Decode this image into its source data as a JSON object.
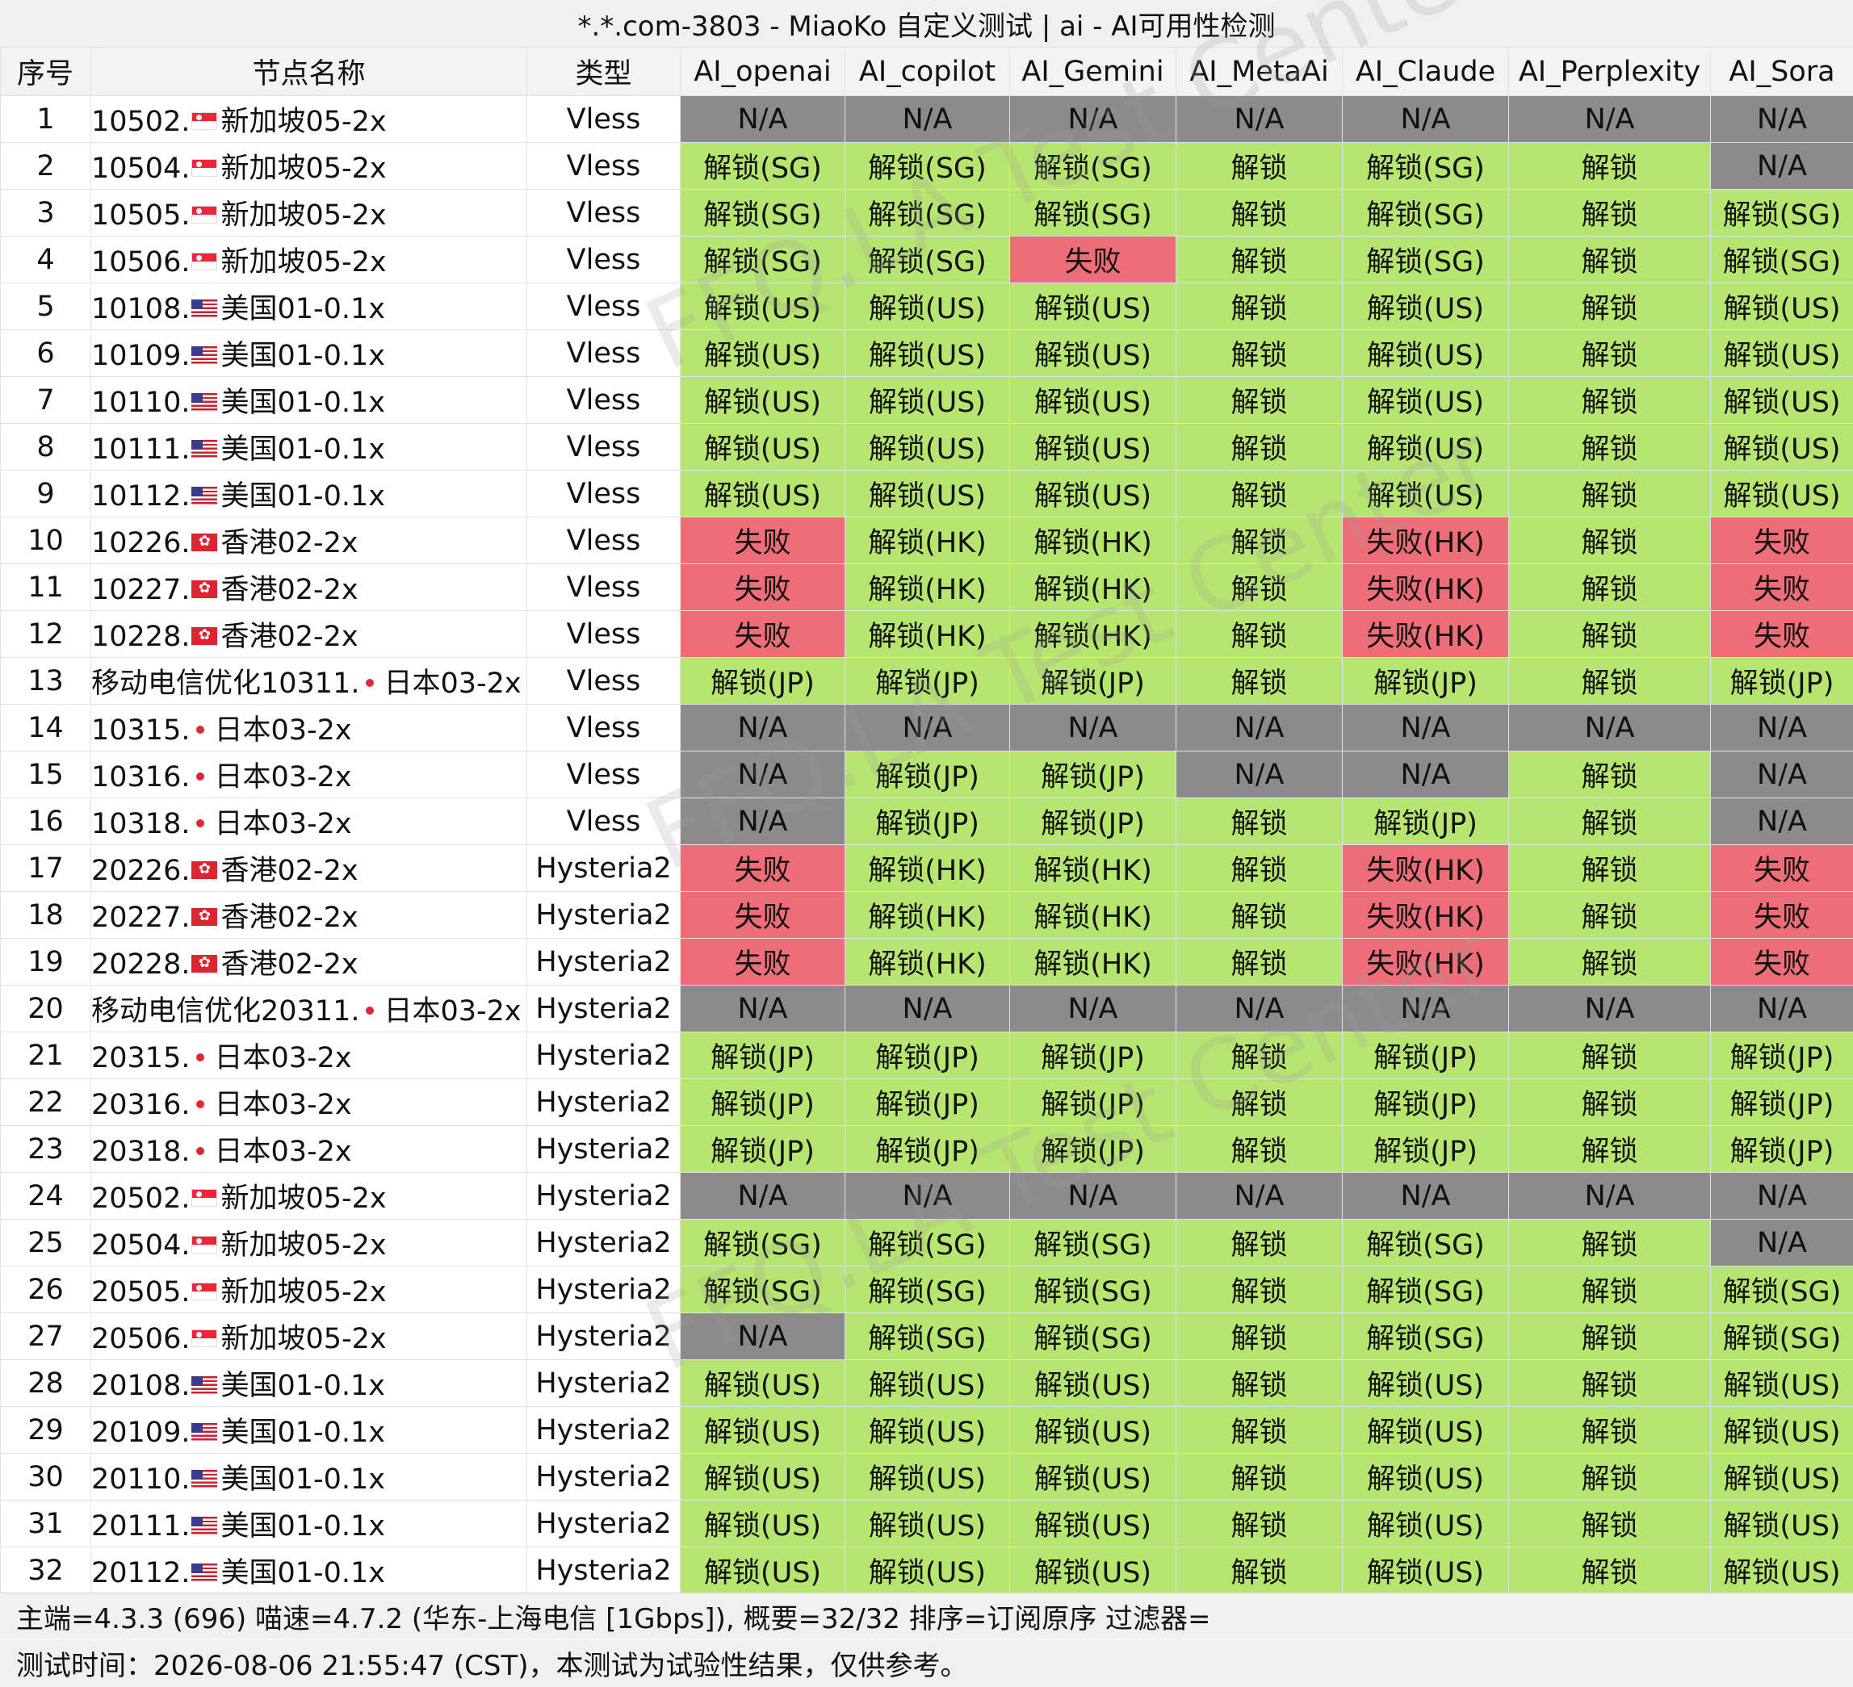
{
  "title": "*.*.com-3803 - MiaoKo 自定义测试 | ai - AI可用性检测",
  "columns": [
    "序号",
    "节点名称",
    "类型",
    "AI_openai",
    "AI_copilot",
    "AI_Gemini",
    "AI_MetaAi",
    "AI_Claude",
    "AI_Perplexity",
    "AI_Sora"
  ],
  "rows": [
    {
      "seq": "1",
      "prefix": "10502.",
      "flag": "sg",
      "region": "新加坡05-2x",
      "type": "Vless",
      "results": [
        "N/A",
        "N/A",
        "N/A",
        "N/A",
        "N/A",
        "N/A",
        "N/A"
      ]
    },
    {
      "seq": "2",
      "prefix": "10504.",
      "flag": "sg",
      "region": "新加坡05-2x",
      "type": "Vless",
      "results": [
        "解锁(SG)",
        "解锁(SG)",
        "解锁(SG)",
        "解锁",
        "解锁(SG)",
        "解锁",
        "N/A"
      ]
    },
    {
      "seq": "3",
      "prefix": "10505.",
      "flag": "sg",
      "region": "新加坡05-2x",
      "type": "Vless",
      "results": [
        "解锁(SG)",
        "解锁(SG)",
        "解锁(SG)",
        "解锁",
        "解锁(SG)",
        "解锁",
        "解锁(SG)"
      ]
    },
    {
      "seq": "4",
      "prefix": "10506.",
      "flag": "sg",
      "region": "新加坡05-2x",
      "type": "Vless",
      "results": [
        "解锁(SG)",
        "解锁(SG)",
        "失败",
        "解锁",
        "解锁(SG)",
        "解锁",
        "解锁(SG)"
      ]
    },
    {
      "seq": "5",
      "prefix": "10108.",
      "flag": "us",
      "region": "美国01-0.1x",
      "type": "Vless",
      "results": [
        "解锁(US)",
        "解锁(US)",
        "解锁(US)",
        "解锁",
        "解锁(US)",
        "解锁",
        "解锁(US)"
      ]
    },
    {
      "seq": "6",
      "prefix": "10109.",
      "flag": "us",
      "region": "美国01-0.1x",
      "type": "Vless",
      "results": [
        "解锁(US)",
        "解锁(US)",
        "解锁(US)",
        "解锁",
        "解锁(US)",
        "解锁",
        "解锁(US)"
      ]
    },
    {
      "seq": "7",
      "prefix": "10110.",
      "flag": "us",
      "region": "美国01-0.1x",
      "type": "Vless",
      "results": [
        "解锁(US)",
        "解锁(US)",
        "解锁(US)",
        "解锁",
        "解锁(US)",
        "解锁",
        "解锁(US)"
      ]
    },
    {
      "seq": "8",
      "prefix": "10111.",
      "flag": "us",
      "region": "美国01-0.1x",
      "type": "Vless",
      "results": [
        "解锁(US)",
        "解锁(US)",
        "解锁(US)",
        "解锁",
        "解锁(US)",
        "解锁",
        "解锁(US)"
      ]
    },
    {
      "seq": "9",
      "prefix": "10112.",
      "flag": "us",
      "region": "美国01-0.1x",
      "type": "Vless",
      "results": [
        "解锁(US)",
        "解锁(US)",
        "解锁(US)",
        "解锁",
        "解锁(US)",
        "解锁",
        "解锁(US)"
      ]
    },
    {
      "seq": "10",
      "prefix": "10226.",
      "flag": "hk",
      "region": "香港02-2x",
      "type": "Vless",
      "results": [
        "失败",
        "解锁(HK)",
        "解锁(HK)",
        "解锁",
        "失败(HK)",
        "解锁",
        "失败"
      ]
    },
    {
      "seq": "11",
      "prefix": "10227.",
      "flag": "hk",
      "region": "香港02-2x",
      "type": "Vless",
      "results": [
        "失败",
        "解锁(HK)",
        "解锁(HK)",
        "解锁",
        "失败(HK)",
        "解锁",
        "失败"
      ]
    },
    {
      "seq": "12",
      "prefix": "10228.",
      "flag": "hk",
      "region": "香港02-2x",
      "type": "Vless",
      "results": [
        "失败",
        "解锁(HK)",
        "解锁(HK)",
        "解锁",
        "失败(HK)",
        "解锁",
        "失败"
      ]
    },
    {
      "seq": "13",
      "prefix": "移动电信优化10311.",
      "flag": "jp",
      "region": "日本03-2x",
      "type": "Vless",
      "results": [
        "解锁(JP)",
        "解锁(JP)",
        "解锁(JP)",
        "解锁",
        "解锁(JP)",
        "解锁",
        "解锁(JP)"
      ]
    },
    {
      "seq": "14",
      "prefix": "10315.",
      "flag": "jp",
      "region": "日本03-2x",
      "type": "Vless",
      "results": [
        "N/A",
        "N/A",
        "N/A",
        "N/A",
        "N/A",
        "N/A",
        "N/A"
      ]
    },
    {
      "seq": "15",
      "prefix": "10316.",
      "flag": "jp",
      "region": "日本03-2x",
      "type": "Vless",
      "results": [
        "N/A",
        "解锁(JP)",
        "解锁(JP)",
        "N/A",
        "N/A",
        "解锁",
        "N/A"
      ]
    },
    {
      "seq": "16",
      "prefix": "10318.",
      "flag": "jp",
      "region": "日本03-2x",
      "type": "Vless",
      "results": [
        "N/A",
        "解锁(JP)",
        "解锁(JP)",
        "解锁",
        "解锁(JP)",
        "解锁",
        "N/A"
      ]
    },
    {
      "seq": "17",
      "prefix": "20226.",
      "flag": "hk",
      "region": "香港02-2x",
      "type": "Hysteria2",
      "results": [
        "失败",
        "解锁(HK)",
        "解锁(HK)",
        "解锁",
        "失败(HK)",
        "解锁",
        "失败"
      ]
    },
    {
      "seq": "18",
      "prefix": "20227.",
      "flag": "hk",
      "region": "香港02-2x",
      "type": "Hysteria2",
      "results": [
        "失败",
        "解锁(HK)",
        "解锁(HK)",
        "解锁",
        "失败(HK)",
        "解锁",
        "失败"
      ]
    },
    {
      "seq": "19",
      "prefix": "20228.",
      "flag": "hk",
      "region": "香港02-2x",
      "type": "Hysteria2",
      "results": [
        "失败",
        "解锁(HK)",
        "解锁(HK)",
        "解锁",
        "失败(HK)",
        "解锁",
        "失败"
      ]
    },
    {
      "seq": "20",
      "prefix": "移动电信优化20311.",
      "flag": "jp",
      "region": "日本03-2x",
      "type": "Hysteria2",
      "results": [
        "N/A",
        "N/A",
        "N/A",
        "N/A",
        "N/A",
        "N/A",
        "N/A"
      ]
    },
    {
      "seq": "21",
      "prefix": "20315.",
      "flag": "jp",
      "region": "日本03-2x",
      "type": "Hysteria2",
      "results": [
        "解锁(JP)",
        "解锁(JP)",
        "解锁(JP)",
        "解锁",
        "解锁(JP)",
        "解锁",
        "解锁(JP)"
      ]
    },
    {
      "seq": "22",
      "prefix": "20316.",
      "flag": "jp",
      "region": "日本03-2x",
      "type": "Hysteria2",
      "results": [
        "解锁(JP)",
        "解锁(JP)",
        "解锁(JP)",
        "解锁",
        "解锁(JP)",
        "解锁",
        "解锁(JP)"
      ]
    },
    {
      "seq": "23",
      "prefix": "20318.",
      "flag": "jp",
      "region": "日本03-2x",
      "type": "Hysteria2",
      "results": [
        "解锁(JP)",
        "解锁(JP)",
        "解锁(JP)",
        "解锁",
        "解锁(JP)",
        "解锁",
        "解锁(JP)"
      ]
    },
    {
      "seq": "24",
      "prefix": "20502.",
      "flag": "sg",
      "region": "新加坡05-2x",
      "type": "Hysteria2",
      "results": [
        "N/A",
        "N/A",
        "N/A",
        "N/A",
        "N/A",
        "N/A",
        "N/A"
      ]
    },
    {
      "seq": "25",
      "prefix": "20504.",
      "flag": "sg",
      "region": "新加坡05-2x",
      "type": "Hysteria2",
      "results": [
        "解锁(SG)",
        "解锁(SG)",
        "解锁(SG)",
        "解锁",
        "解锁(SG)",
        "解锁",
        "N/A"
      ]
    },
    {
      "seq": "26",
      "prefix": "20505.",
      "flag": "sg",
      "region": "新加坡05-2x",
      "type": "Hysteria2",
      "results": [
        "解锁(SG)",
        "解锁(SG)",
        "解锁(SG)",
        "解锁",
        "解锁(SG)",
        "解锁",
        "解锁(SG)"
      ]
    },
    {
      "seq": "27",
      "prefix": "20506.",
      "flag": "sg",
      "region": "新加坡05-2x",
      "type": "Hysteria2",
      "results": [
        "N/A",
        "解锁(SG)",
        "解锁(SG)",
        "解锁",
        "解锁(SG)",
        "解锁",
        "解锁(SG)"
      ]
    },
    {
      "seq": "28",
      "prefix": "20108.",
      "flag": "us",
      "region": "美国01-0.1x",
      "type": "Hysteria2",
      "results": [
        "解锁(US)",
        "解锁(US)",
        "解锁(US)",
        "解锁",
        "解锁(US)",
        "解锁",
        "解锁(US)"
      ]
    },
    {
      "seq": "29",
      "prefix": "20109.",
      "flag": "us",
      "region": "美国01-0.1x",
      "type": "Hysteria2",
      "results": [
        "解锁(US)",
        "解锁(US)",
        "解锁(US)",
        "解锁",
        "解锁(US)",
        "解锁",
        "解锁(US)"
      ]
    },
    {
      "seq": "30",
      "prefix": "20110.",
      "flag": "us",
      "region": "美国01-0.1x",
      "type": "Hysteria2",
      "results": [
        "解锁(US)",
        "解锁(US)",
        "解锁(US)",
        "解锁",
        "解锁(US)",
        "解锁",
        "解锁(US)"
      ]
    },
    {
      "seq": "31",
      "prefix": "20111.",
      "flag": "us",
      "region": "美国01-0.1x",
      "type": "Hysteria2",
      "results": [
        "解锁(US)",
        "解锁(US)",
        "解锁(US)",
        "解锁",
        "解锁(US)",
        "解锁",
        "解锁(US)"
      ]
    },
    {
      "seq": "32",
      "prefix": "20112.",
      "flag": "us",
      "region": "美国01-0.1x",
      "type": "Hysteria2",
      "results": [
        "解锁(US)",
        "解锁(US)",
        "解锁(US)",
        "解锁",
        "解锁(US)",
        "解锁",
        "解锁(US)"
      ]
    }
  ],
  "footer": {
    "line1": "主端=4.3.3 (696) 喵速=4.7.2 (华东-上海电信 [1Gbps]), 概要=32/32 排序=订阅原序 过滤器=",
    "line2": "测试时间：2026-08-06 21:55:47 (CST)，本测试为试验性结果，仅供参考。"
  },
  "watermark": "FFQ.LA Test Center",
  "colors": {
    "unlocked": "#b6e66f",
    "failed": "#ee6d77",
    "not_available": "#8b8b8b",
    "header_bg": "#f3f3f3"
  }
}
